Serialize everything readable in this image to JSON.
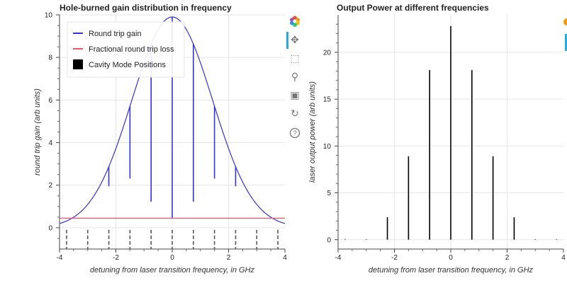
{
  "chart_data": [
    {
      "type": "line",
      "title": "Hole-burned gain distribution in frequency",
      "xlabel": "detuning from laser transition frequency, in GHz",
      "ylabel": "round trip gain (arb units)",
      "xlim": [
        -4,
        4
      ],
      "ylim": [
        -1,
        10
      ],
      "xticks": [
        -4,
        -2,
        0,
        2,
        4
      ],
      "yticks": [
        0,
        2,
        4,
        6,
        8,
        10
      ],
      "grid": true,
      "legend_position": "top-left",
      "legend": [
        {
          "label": "Round trip gain",
          "color": "#3333dd",
          "kind": "line"
        },
        {
          "label": "Fractional round trip loss",
          "color": "#ee5566",
          "kind": "line"
        },
        {
          "label": "Cavity Mode Positions",
          "color": "#000000",
          "kind": "box"
        }
      ],
      "series": [
        {
          "name": "Round trip gain",
          "color": "#3333dd",
          "gain_peak": 9.9,
          "gain_sigma_ghz": 1.43,
          "mode_spacing_ghz": 0.75,
          "holes": [
            {
              "x": -2.25,
              "depth": 0.92
            },
            {
              "x": -1.5,
              "depth": 3.4
            },
            {
              "x": -0.75,
              "depth": 7.4
            },
            {
              "x": 0.0,
              "depth": 9.45
            },
            {
              "x": 0.75,
              "depth": 7.4
            },
            {
              "x": 1.5,
              "depth": 3.4
            },
            {
              "x": 2.25,
              "depth": 0.92
            }
          ]
        },
        {
          "name": "Fractional round trip loss",
          "color": "#ee5566",
          "value": 0.45
        }
      ],
      "mode_positions": [
        -3.75,
        -3.0,
        -2.25,
        -1.5,
        -0.75,
        0.0,
        0.75,
        1.5,
        2.25,
        3.0,
        3.75
      ]
    },
    {
      "type": "bar",
      "title": "Output Power at different frequencies",
      "xlabel": "detuning from laser transition frequency, in GHz",
      "ylabel": "laser output power (arb units)",
      "xlim": [
        -4,
        4
      ],
      "ylim": [
        -1,
        24
      ],
      "xticks": [
        -4,
        -2,
        0,
        2,
        4
      ],
      "yticks": [
        0,
        5,
        10,
        15,
        20
      ],
      "grid": true,
      "color": "#000000",
      "x": [
        -3.75,
        -3.0,
        -2.25,
        -1.5,
        -0.75,
        0.0,
        0.75,
        1.5,
        2.25,
        3.0,
        3.75
      ],
      "values": [
        0,
        0,
        2.4,
        8.9,
        18.1,
        22.8,
        18.1,
        8.9,
        2.4,
        0,
        0
      ]
    }
  ],
  "toolbar": {
    "tools": [
      {
        "name": "bokeh-logo-icon",
        "glyph": ""
      },
      {
        "name": "pan-icon",
        "glyph": "✥"
      },
      {
        "name": "box-zoom-icon",
        "glyph": "⬚"
      },
      {
        "name": "wheel-zoom-icon",
        "glyph": "⚲"
      },
      {
        "name": "save-icon",
        "glyph": "▣"
      },
      {
        "name": "reset-icon",
        "glyph": "↻"
      },
      {
        "name": "help-icon",
        "glyph": "?"
      }
    ]
  }
}
